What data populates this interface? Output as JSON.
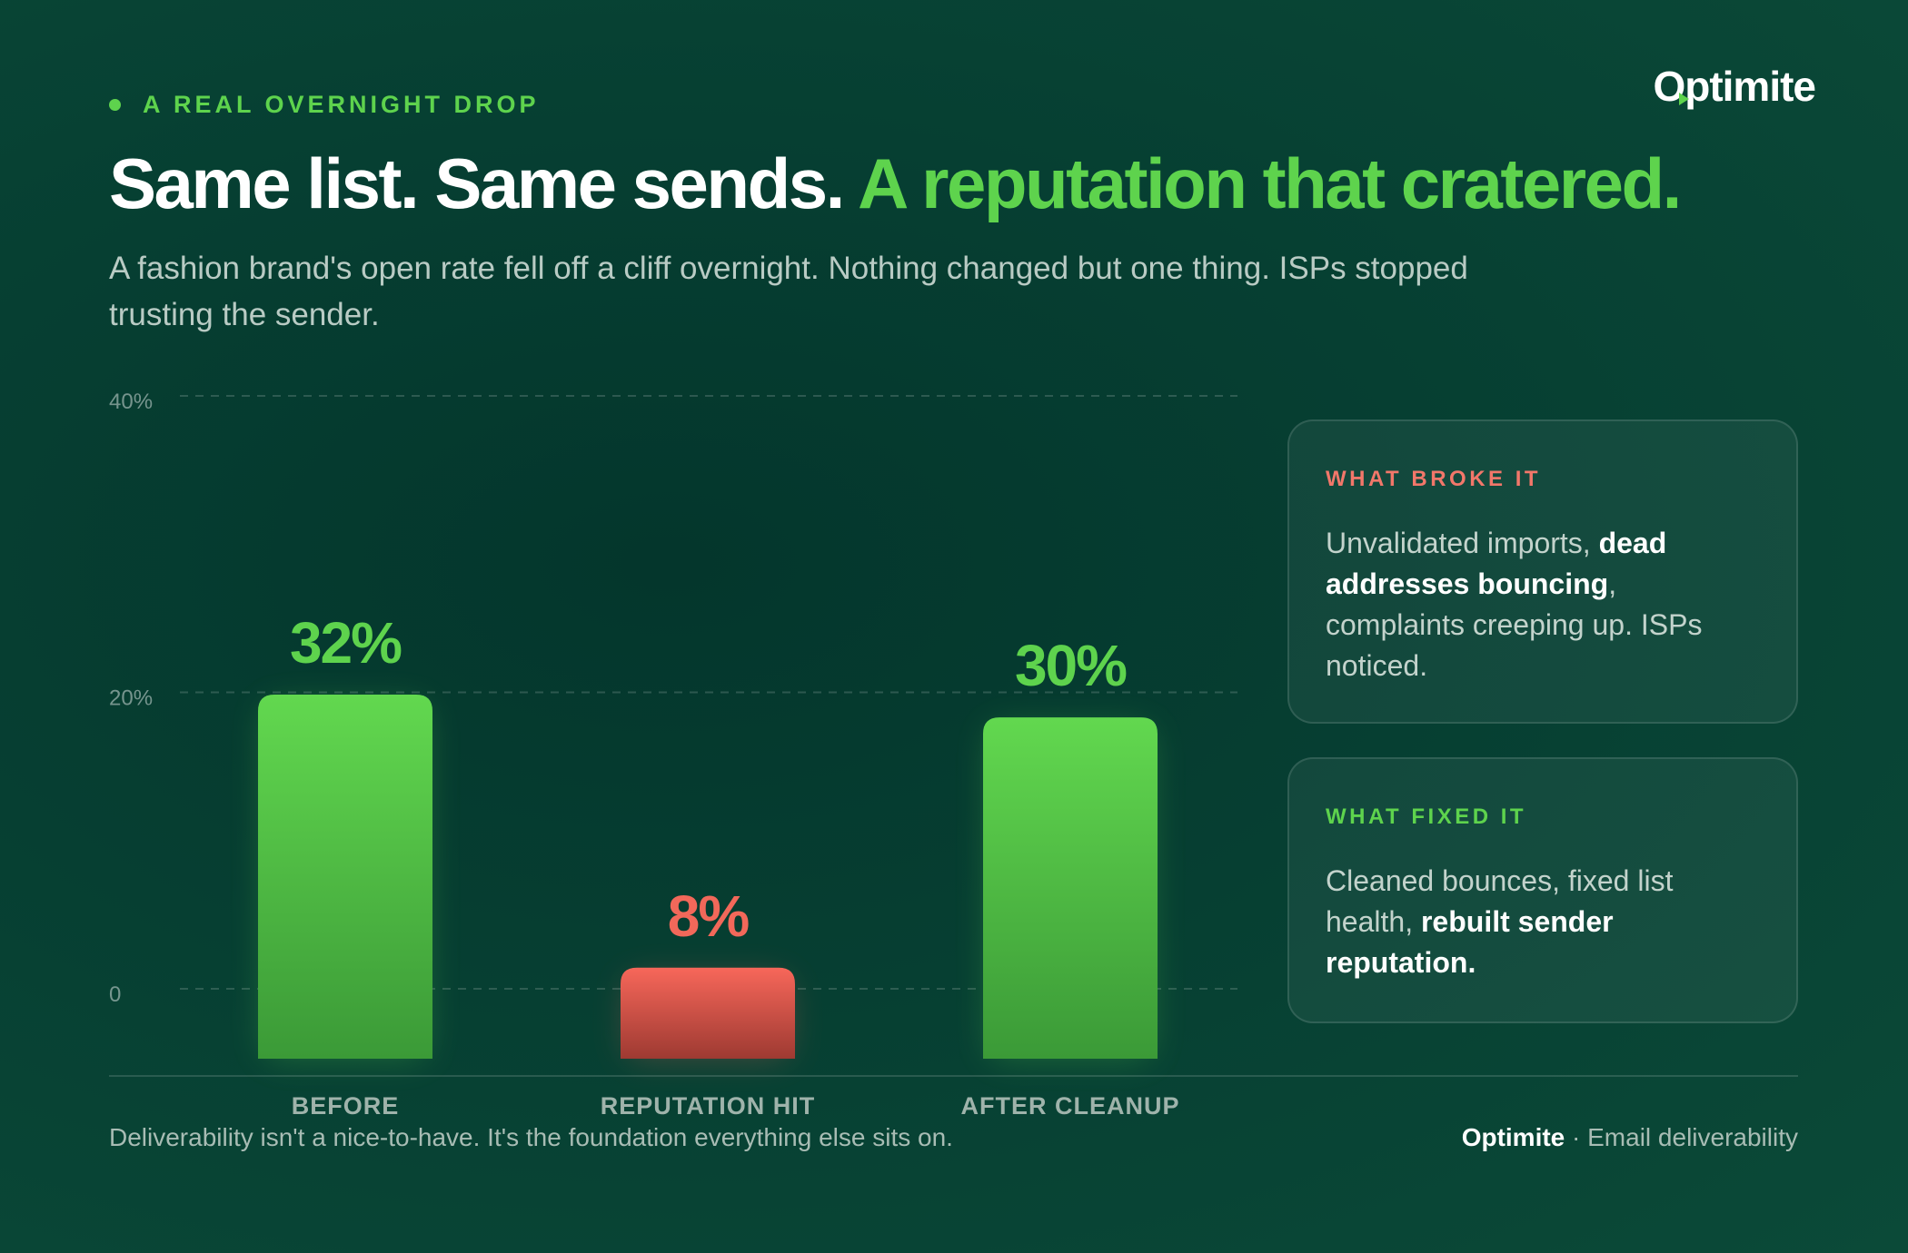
{
  "eyebrow": "A REAL OVERNIGHT DROP",
  "logo": {
    "first": "O",
    "rest": "ptimite"
  },
  "headline": {
    "part1": "Same list. Same sends. ",
    "part2": "A reputation that cratered."
  },
  "subtitle": "A fashion brand's open rate fell off a cliff overnight. Nothing changed but one thing. ISPs stopped trusting the sender.",
  "chart_data": {
    "type": "bar",
    "categories": [
      "BEFORE",
      "REPUTATION HIT",
      "AFTER CLEANUP"
    ],
    "values": [
      32,
      8,
      30
    ],
    "value_labels": [
      "32%",
      "8%",
      "30%"
    ],
    "y_ticks": [
      {
        "value": 40,
        "label": "40%"
      },
      {
        "value": 20,
        "label": "20%"
      },
      {
        "value": 0,
        "label": "0"
      }
    ],
    "ylim": [
      0,
      40
    ],
    "grid": true,
    "colors": {
      "positive": "#5ed34d",
      "negative": "#f2685a"
    },
    "bar_roles": [
      "positive",
      "negative",
      "positive"
    ]
  },
  "cards": {
    "broke": {
      "title": "WHAT BROKE IT",
      "text1": "Unvalidated imports, ",
      "bold1": "dead addresses bouncing",
      "text2": ", complaints creeping up. ISPs noticed."
    },
    "fixed": {
      "title": "WHAT FIXED IT",
      "text1": "Cleaned bounces, fixed list health, ",
      "bold1": "rebuilt sender reputation."
    }
  },
  "footer": {
    "tagline": "Deliverability isn't a nice-to-have. It's the foundation everything else sits on.",
    "brand": "Optimite",
    "descriptor": " · Email deliverability"
  },
  "colors": {
    "accent": "#5ed34d",
    "alert": "#f2685a",
    "background": "#063f32"
  }
}
